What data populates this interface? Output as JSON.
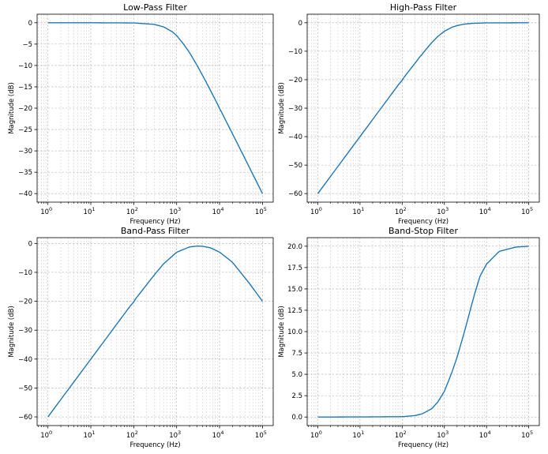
{
  "colors": {
    "line": "#1f77b4"
  },
  "chart_data": [
    {
      "type": "line",
      "title": "Low-Pass Filter",
      "xlabel": "Frequency (Hz)",
      "ylabel": "Magnitude (dB)",
      "xscale": "log",
      "grid": true,
      "xlim": [
        0.56,
        178000
      ],
      "ylim": [
        -42,
        2
      ],
      "xticks": [
        1,
        10,
        100,
        1000,
        10000,
        100000
      ],
      "xtick_labels": [
        {
          "base": "10",
          "exp": "0"
        },
        {
          "base": "10",
          "exp": "1"
        },
        {
          "base": "10",
          "exp": "2"
        },
        {
          "base": "10",
          "exp": "3"
        },
        {
          "base": "10",
          "exp": "4"
        },
        {
          "base": "10",
          "exp": "5"
        }
      ],
      "yticks": [
        0,
        -5,
        -10,
        -15,
        -20,
        -25,
        -30,
        -35,
        -40
      ],
      "ytick_labels": [
        "0",
        "−5",
        "−10",
        "−15",
        "−20",
        "−25",
        "−30",
        "−35",
        "−40"
      ],
      "series": [
        {
          "x": [
            1,
            10,
            100,
            300,
            500,
            800,
            1000,
            1500,
            2000,
            3000,
            5000,
            10000,
            30000,
            100000
          ],
          "y": [
            0,
            0,
            -0.04,
            -0.38,
            -0.97,
            -2.15,
            -3.0,
            -5.2,
            -7.0,
            -10.0,
            -14.1,
            -20.0,
            -29.5,
            -40.0
          ]
        }
      ]
    },
    {
      "type": "line",
      "title": "High-Pass Filter",
      "xlabel": "Frequency (Hz)",
      "ylabel": "Magnitude (dB)",
      "xscale": "log",
      "grid": true,
      "xlim": [
        0.56,
        178000
      ],
      "ylim": [
        -63,
        3
      ],
      "xticks": [
        1,
        10,
        100,
        1000,
        10000,
        100000
      ],
      "xtick_labels": [
        {
          "base": "10",
          "exp": "0"
        },
        {
          "base": "10",
          "exp": "1"
        },
        {
          "base": "10",
          "exp": "2"
        },
        {
          "base": "10",
          "exp": "3"
        },
        {
          "base": "10",
          "exp": "4"
        },
        {
          "base": "10",
          "exp": "5"
        }
      ],
      "yticks": [
        0,
        -10,
        -20,
        -30,
        -40,
        -50,
        -60
      ],
      "ytick_labels": [
        "0",
        "−10",
        "−20",
        "−30",
        "−40",
        "−50",
        "−60"
      ],
      "series": [
        {
          "x": [
            1,
            10,
            100,
            300,
            500,
            700,
            1000,
            1500,
            2000,
            3000,
            5000,
            10000,
            100000
          ],
          "y": [
            -60,
            -40,
            -20,
            -10.9,
            -7.0,
            -4.8,
            -3.0,
            -1.6,
            -1.0,
            -0.46,
            -0.17,
            -0.04,
            0
          ]
        }
      ]
    },
    {
      "type": "line",
      "title": "Band-Pass Filter",
      "xlabel": "Frequency (Hz)",
      "ylabel": "Magnitude (dB)",
      "xscale": "log",
      "grid": true,
      "xlim": [
        0.56,
        178000
      ],
      "ylim": [
        -63,
        2
      ],
      "xticks": [
        1,
        10,
        100,
        1000,
        10000,
        100000
      ],
      "xtick_labels": [
        {
          "base": "10",
          "exp": "0"
        },
        {
          "base": "10",
          "exp": "1"
        },
        {
          "base": "10",
          "exp": "2"
        },
        {
          "base": "10",
          "exp": "3"
        },
        {
          "base": "10",
          "exp": "4"
        },
        {
          "base": "10",
          "exp": "5"
        }
      ],
      "yticks": [
        0,
        -10,
        -20,
        -30,
        -40,
        -50,
        -60
      ],
      "ytick_labels": [
        "0",
        "−10",
        "−20",
        "−30",
        "−40",
        "−50",
        "−60"
      ],
      "series": [
        {
          "x": [
            1,
            10,
            100,
            300,
            500,
            1000,
            2000,
            3000,
            4000,
            6000,
            10000,
            20000,
            50000,
            100000
          ],
          "y": [
            -60,
            -40,
            -20,
            -10.9,
            -7.0,
            -3.05,
            -1.2,
            -0.92,
            -0.98,
            -1.47,
            -3.0,
            -6.5,
            -13.9,
            -20.0
          ]
        }
      ]
    },
    {
      "type": "line",
      "title": "Band-Stop Filter",
      "xlabel": "Frequency (Hz)",
      "ylabel": "Magnitude (dB)",
      "xscale": "log",
      "grid": true,
      "xlim": [
        0.56,
        178000
      ],
      "ylim": [
        -1.0,
        21.0
      ],
      "xticks": [
        1,
        10,
        100,
        1000,
        10000,
        100000
      ],
      "xtick_labels": [
        {
          "base": "10",
          "exp": "0"
        },
        {
          "base": "10",
          "exp": "1"
        },
        {
          "base": "10",
          "exp": "2"
        },
        {
          "base": "10",
          "exp": "3"
        },
        {
          "base": "10",
          "exp": "4"
        },
        {
          "base": "10",
          "exp": "5"
        }
      ],
      "yticks": [
        0,
        2.5,
        5,
        7.5,
        10,
        12.5,
        15,
        17.5,
        20
      ],
      "ytick_labels": [
        "0.0",
        "2.5",
        "5.0",
        "7.5",
        "10.0",
        "12.5",
        "15.0",
        "17.5",
        "20.0"
      ],
      "series": [
        {
          "x": [
            1,
            10,
            100,
            200,
            300,
            500,
            700,
            1000,
            1500,
            2000,
            3000,
            5000,
            7000,
            10000,
            20000,
            50000,
            100000
          ],
          "y": [
            0,
            0.01,
            0.04,
            0.17,
            0.38,
            0.97,
            1.76,
            3.0,
            5.2,
            7.0,
            10.0,
            14.1,
            16.5,
            17.9,
            19.4,
            19.9,
            20.0
          ]
        }
      ]
    }
  ]
}
